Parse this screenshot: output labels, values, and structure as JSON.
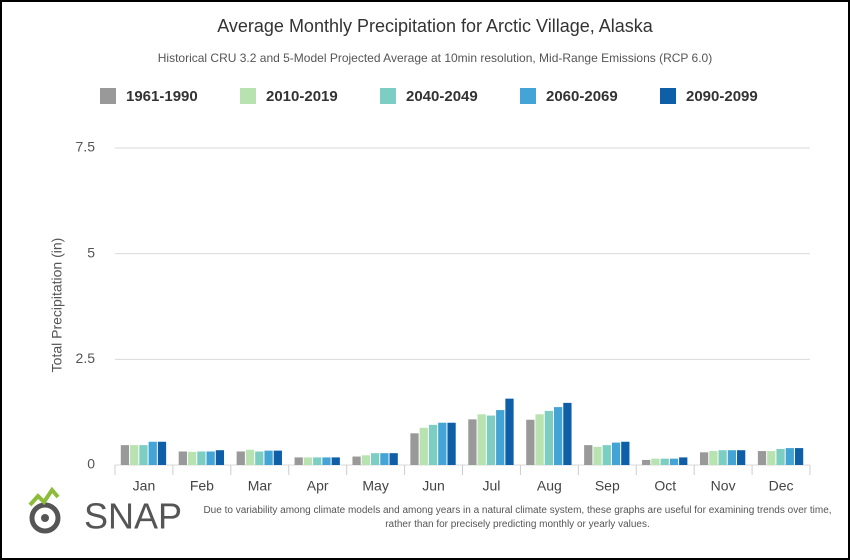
{
  "chart_data": {
    "type": "bar",
    "title": "Average Monthly Precipitation for Arctic Village, Alaska",
    "subtitle": "Historical CRU 3.2 and 5-Model Projected Average at 10min resolution, Mid-Range Emissions (RCP 6.0)",
    "y_label": "Total Precipitation (in)",
    "categories": [
      "Jan",
      "Feb",
      "Mar",
      "Apr",
      "May",
      "Jun",
      "Jul",
      "Aug",
      "Sep",
      "Oct",
      "Nov",
      "Dec"
    ],
    "series": [
      {
        "name": "1961-1990",
        "color": "#999999",
        "values": [
          0.47,
          0.32,
          0.32,
          0.18,
          0.2,
          0.75,
          1.08,
          1.07,
          0.47,
          0.12,
          0.3,
          0.33
        ]
      },
      {
        "name": "2010-2019",
        "color": "#b8e3b0",
        "values": [
          0.47,
          0.31,
          0.36,
          0.18,
          0.23,
          0.88,
          1.2,
          1.2,
          0.43,
          0.15,
          0.33,
          0.33
        ]
      },
      {
        "name": "2040-2049",
        "color": "#7ccec3",
        "values": [
          0.47,
          0.32,
          0.32,
          0.18,
          0.28,
          0.95,
          1.17,
          1.28,
          0.47,
          0.15,
          0.35,
          0.38
        ]
      },
      {
        "name": "2060-2069",
        "color": "#45a4d6",
        "values": [
          0.55,
          0.32,
          0.34,
          0.18,
          0.28,
          1.0,
          1.3,
          1.37,
          0.53,
          0.15,
          0.35,
          0.4
        ]
      },
      {
        "name": "2090-2099",
        "color": "#0f5fa8",
        "values": [
          0.55,
          0.35,
          0.34,
          0.18,
          0.28,
          1.0,
          1.57,
          1.47,
          0.55,
          0.18,
          0.35,
          0.4
        ]
      }
    ],
    "ylim": [
      0,
      7.5
    ],
    "yticks": [
      0,
      2.5,
      5,
      7.5
    ],
    "grid": true
  },
  "logo": "SNAP",
  "footnote": "Due to variability among climate models and among years in a natural climate system, these graphs are useful for examining trends over time, rather than for precisely predicting monthly or yearly values."
}
